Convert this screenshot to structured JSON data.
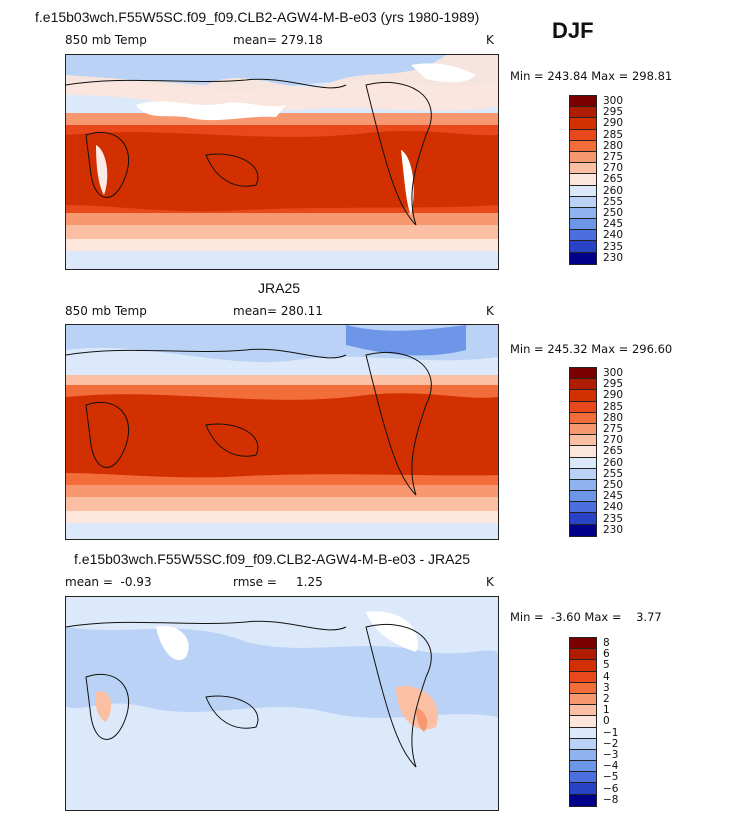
{
  "season": "DJF",
  "panels": [
    {
      "title": "f.e15b03wch.F55W5SC.f09_f09.CLB2-AGW4-M-B-e03 (yrs 1980-1989)",
      "variable": "850 mb Temp",
      "stat": "mean= 279.18",
      "unit": "K",
      "minmax": "Min = 243.84 Max = 298.81",
      "colorbar_levels": [
        "300",
        "295",
        "290",
        "285",
        "280",
        "275",
        "270",
        "265",
        "260",
        "255",
        "250",
        "245",
        "240",
        "235",
        "230"
      ]
    },
    {
      "title": "JRA25",
      "variable": "850 mb Temp",
      "stat": "mean= 280.11",
      "unit": "K",
      "minmax": "Min = 245.32 Max = 296.60",
      "colorbar_levels": [
        "300",
        "295",
        "290",
        "285",
        "280",
        "275",
        "270",
        "265",
        "260",
        "255",
        "250",
        "245",
        "240",
        "235",
        "230"
      ]
    },
    {
      "title": "f.e15b03wch.F55W5SC.f09_f09.CLB2-AGW4-M-B-e03 - JRA25",
      "variable": "mean =  -0.93",
      "stat": "rmse =     1.25",
      "unit": "K",
      "minmax": "Min =  -3.60 Max =    3.77",
      "colorbar_levels": [
        "8",
        "6",
        "5",
        "4",
        "3",
        "2",
        "1",
        "0",
        "−1",
        "−2",
        "−3",
        "−4",
        "−5",
        "−6",
        "−8"
      ]
    }
  ],
  "colors": {
    "abs_scale": [
      "#7a0000",
      "#b01c00",
      "#d23000",
      "#e8481c",
      "#f26d3a",
      "#f89870",
      "#fbc0a4",
      "#fde6dc",
      "#dce9fb",
      "#b9d2f5",
      "#8fb3ee",
      "#6e96e8",
      "#4c6fe0",
      "#2943c6",
      "#00008a"
    ],
    "diff_scale": [
      "#7a0000",
      "#b01c00",
      "#d23000",
      "#e8481c",
      "#f26d3a",
      "#f89870",
      "#fbc0a4",
      "#fde6dc",
      "#dce9fb",
      "#b9d2f5",
      "#8fb3ee",
      "#6e96e8",
      "#4c6fe0",
      "#2943c6",
      "#00008a"
    ]
  }
}
